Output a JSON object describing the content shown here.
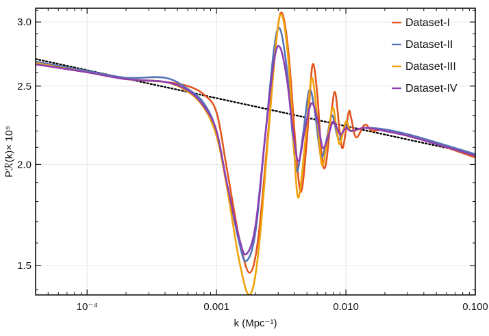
{
  "chart_data": {
    "type": "line",
    "title": "",
    "xlabel": "k (Mpc⁻¹)",
    "ylabel": "Pℛ(k)× 10⁹",
    "xscale": "log",
    "yscale": "log",
    "xlim": [
      4e-05,
      0.1
    ],
    "ylim": [
      1.38,
      3.12
    ],
    "grid": true,
    "legend_position": "top-right",
    "x_ticks": [
      {
        "value": 0.0001,
        "label": "10⁻⁴"
      },
      {
        "value": 0.001,
        "label": "0.001"
      },
      {
        "value": 0.01,
        "label": "0.010"
      },
      {
        "value": 0.1,
        "label": "0.100"
      }
    ],
    "y_ticks": [
      {
        "value": 1.5,
        "label": "1.5"
      },
      {
        "value": 2.0,
        "label": "2.0"
      },
      {
        "value": 2.5,
        "label": "2.5"
      },
      {
        "value": 3.0,
        "label": "3.0"
      }
    ],
    "reference_line": {
      "style": "dotted",
      "color": "#000000",
      "points": [
        [
          4e-05,
          2.7
        ],
        [
          0.1,
          2.06
        ]
      ]
    },
    "series": [
      {
        "name": "Dataset-I",
        "color": "#e2561d",
        "amplitude": 1.0,
        "points": [
          [
            4e-05,
            2.66
          ],
          [
            0.0001,
            2.6
          ],
          [
            0.0002,
            2.55
          ],
          [
            0.0004,
            2.53
          ],
          [
            0.0006,
            2.5
          ],
          [
            0.0008,
            2.44
          ],
          [
            0.001,
            2.32
          ],
          [
            0.0012,
            1.98
          ],
          [
            0.0015,
            1.62
          ],
          [
            0.0018,
            1.47
          ],
          [
            0.0021,
            1.62
          ],
          [
            0.0025,
            2.18
          ],
          [
            0.0029,
            2.85
          ],
          [
            0.0032,
            3.08
          ],
          [
            0.0036,
            2.75
          ],
          [
            0.0041,
            2.1
          ],
          [
            0.0045,
            1.85
          ],
          [
            0.005,
            2.15
          ],
          [
            0.0055,
            2.65
          ],
          [
            0.006,
            2.45
          ],
          [
            0.0065,
            2.05
          ],
          [
            0.007,
            2.0
          ],
          [
            0.0078,
            2.35
          ],
          [
            0.0083,
            2.45
          ],
          [
            0.009,
            2.18
          ],
          [
            0.0095,
            2.1
          ],
          [
            0.0105,
            2.32
          ],
          [
            0.011,
            2.28
          ],
          [
            0.012,
            2.16
          ],
          [
            0.014,
            2.24
          ],
          [
            0.016,
            2.2
          ],
          [
            0.02,
            2.21
          ],
          [
            0.03,
            2.17
          ],
          [
            0.05,
            2.12
          ],
          [
            0.1,
            2.04
          ]
        ]
      },
      {
        "name": "Dataset-II",
        "color": "#5474b8",
        "amplitude": 1.0,
        "points": [
          [
            4e-05,
            2.68
          ],
          [
            0.0001,
            2.61
          ],
          [
            0.0002,
            2.56
          ],
          [
            0.0004,
            2.56
          ],
          [
            0.0006,
            2.48
          ],
          [
            0.0008,
            2.38
          ],
          [
            0.001,
            2.2
          ],
          [
            0.0012,
            1.9
          ],
          [
            0.0015,
            1.6
          ],
          [
            0.0017,
            1.52
          ],
          [
            0.002,
            1.65
          ],
          [
            0.0024,
            2.2
          ],
          [
            0.0028,
            2.8
          ],
          [
            0.0031,
            2.94
          ],
          [
            0.0035,
            2.62
          ],
          [
            0.0039,
            2.15
          ],
          [
            0.0042,
            1.96
          ],
          [
            0.0047,
            2.2
          ],
          [
            0.0052,
            2.47
          ],
          [
            0.0057,
            2.35
          ],
          [
            0.0064,
            2.05
          ],
          [
            0.007,
            2.13
          ],
          [
            0.0078,
            2.3
          ],
          [
            0.0085,
            2.18
          ],
          [
            0.009,
            2.15
          ],
          [
            0.01,
            2.24
          ],
          [
            0.011,
            2.2
          ],
          [
            0.014,
            2.22
          ],
          [
            0.02,
            2.21
          ],
          [
            0.03,
            2.18
          ],
          [
            0.05,
            2.13
          ],
          [
            0.1,
            2.06
          ]
        ]
      },
      {
        "name": "Dataset-III",
        "color": "#efa20a",
        "amplitude": 1.0,
        "points": [
          [
            4e-05,
            2.67
          ],
          [
            0.0001,
            2.6
          ],
          [
            0.0002,
            2.55
          ],
          [
            0.0004,
            2.53
          ],
          [
            0.0006,
            2.46
          ],
          [
            0.0008,
            2.35
          ],
          [
            0.001,
            2.17
          ],
          [
            0.0012,
            1.88
          ],
          [
            0.0015,
            1.52
          ],
          [
            0.0018,
            1.38
          ],
          [
            0.0021,
            1.55
          ],
          [
            0.0025,
            2.15
          ],
          [
            0.0029,
            2.85
          ],
          [
            0.0032,
            3.06
          ],
          [
            0.0036,
            2.68
          ],
          [
            0.004,
            2.05
          ],
          [
            0.0043,
            1.82
          ],
          [
            0.0048,
            2.1
          ],
          [
            0.0054,
            2.55
          ],
          [
            0.0059,
            2.35
          ],
          [
            0.0065,
            2.0
          ],
          [
            0.0071,
            2.12
          ],
          [
            0.0079,
            2.35
          ],
          [
            0.0085,
            2.2
          ],
          [
            0.009,
            2.12
          ],
          [
            0.01,
            2.26
          ],
          [
            0.011,
            2.2
          ],
          [
            0.014,
            2.22
          ],
          [
            0.02,
            2.2
          ],
          [
            0.03,
            2.17
          ],
          [
            0.05,
            2.12
          ],
          [
            0.1,
            2.05
          ]
        ]
      },
      {
        "name": "Dataset-IV",
        "color": "#8c3fb4",
        "amplitude": 1.0,
        "points": [
          [
            4e-05,
            2.66
          ],
          [
            0.0001,
            2.6
          ],
          [
            0.0002,
            2.55
          ],
          [
            0.0004,
            2.53
          ],
          [
            0.0006,
            2.47
          ],
          [
            0.0008,
            2.36
          ],
          [
            0.001,
            2.2
          ],
          [
            0.0012,
            1.9
          ],
          [
            0.0015,
            1.62
          ],
          [
            0.0017,
            1.55
          ],
          [
            0.002,
            1.68
          ],
          [
            0.0024,
            2.2
          ],
          [
            0.0028,
            2.7
          ],
          [
            0.0031,
            2.79
          ],
          [
            0.0035,
            2.55
          ],
          [
            0.0039,
            2.2
          ],
          [
            0.0043,
            2.02
          ],
          [
            0.0048,
            2.2
          ],
          [
            0.0054,
            2.38
          ],
          [
            0.006,
            2.28
          ],
          [
            0.0066,
            2.1
          ],
          [
            0.0072,
            2.15
          ],
          [
            0.008,
            2.26
          ],
          [
            0.009,
            2.18
          ],
          [
            0.01,
            2.22
          ],
          [
            0.011,
            2.2
          ],
          [
            0.014,
            2.22
          ],
          [
            0.02,
            2.2
          ],
          [
            0.03,
            2.17
          ],
          [
            0.05,
            2.12
          ],
          [
            0.1,
            2.05
          ]
        ]
      }
    ]
  }
}
